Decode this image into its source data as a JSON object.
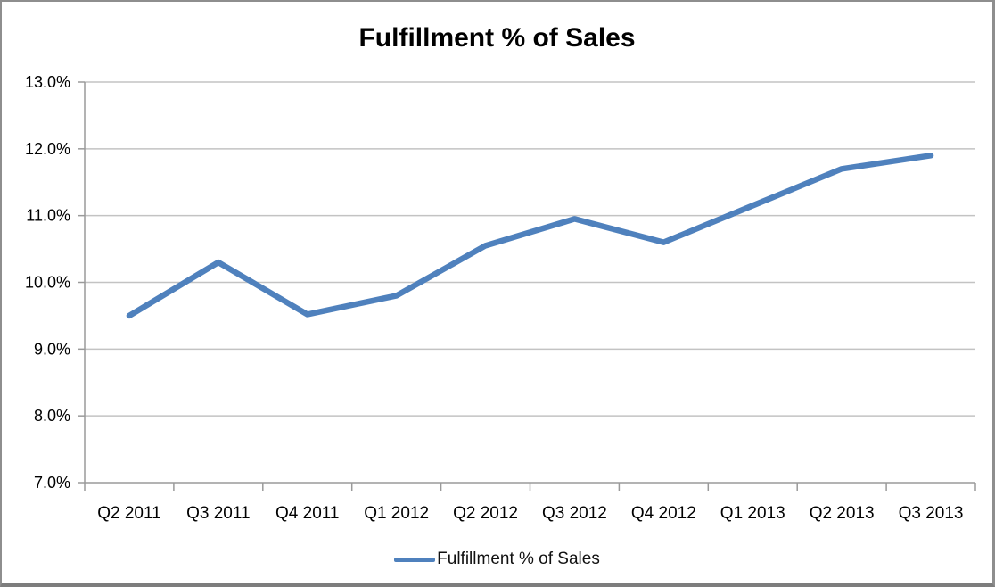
{
  "chart_data": {
    "type": "line",
    "title": "Fulfillment % of Sales",
    "categories": [
      "Q2 2011",
      "Q3 2011",
      "Q4 2011",
      "Q1 2012",
      "Q2 2012",
      "Q3 2012",
      "Q4 2012",
      "Q1 2013",
      "Q2 2013",
      "Q3 2013"
    ],
    "series": [
      {
        "name": "Fulfillment % of Sales",
        "values": [
          9.5,
          10.3,
          9.52,
          9.8,
          10.55,
          10.95,
          10.6,
          11.15,
          11.7,
          11.9
        ],
        "color": "#4F81BD"
      }
    ],
    "xlabel": "",
    "ylabel": "",
    "ylim": [
      7.0,
      13.0
    ],
    "y_tick_step": 1.0,
    "y_tick_labels": [
      "7.0%",
      "8.0%",
      "9.0%",
      "10.0%",
      "11.0%",
      "12.0%",
      "13.0%"
    ],
    "grid": true,
    "legend_position": "bottom",
    "legend_label": "Fulfillment % of Sales"
  },
  "colors": {
    "background": "#ffffff",
    "gridline": "#c3c3c3",
    "axis": "#9a9a9a",
    "tick": "#9a9a9a",
    "label_text": "#000000",
    "series": "#4F81BD",
    "frame_border": "#8e8e8e"
  }
}
